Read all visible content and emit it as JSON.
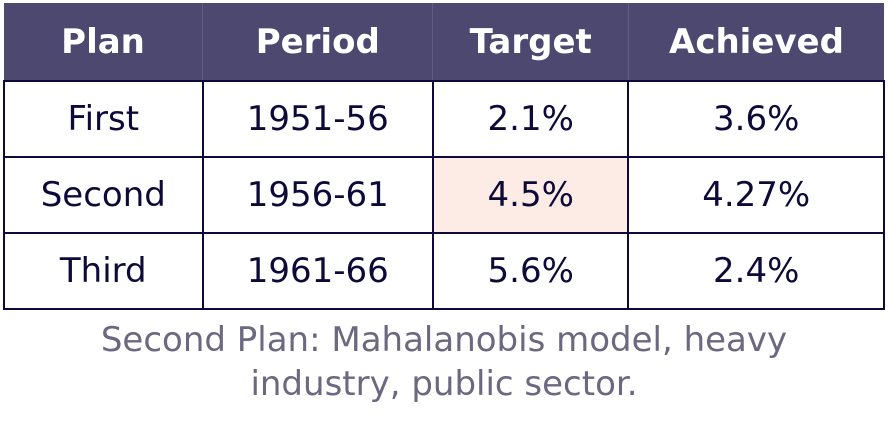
{
  "table": {
    "header": [
      "Plan",
      "Period",
      "Target",
      "Achieved"
    ],
    "rows": [
      [
        "First",
        "1951-56",
        "2.1%",
        "3.6%"
      ],
      [
        "Second",
        "1956-61",
        "4.5%",
        "4.27%"
      ],
      [
        "Third",
        "1961-66",
        "5.6%",
        "2.4%"
      ]
    ]
  },
  "caption": "Second Plan: Mahalanobis model, heavy industry, public sector."
}
